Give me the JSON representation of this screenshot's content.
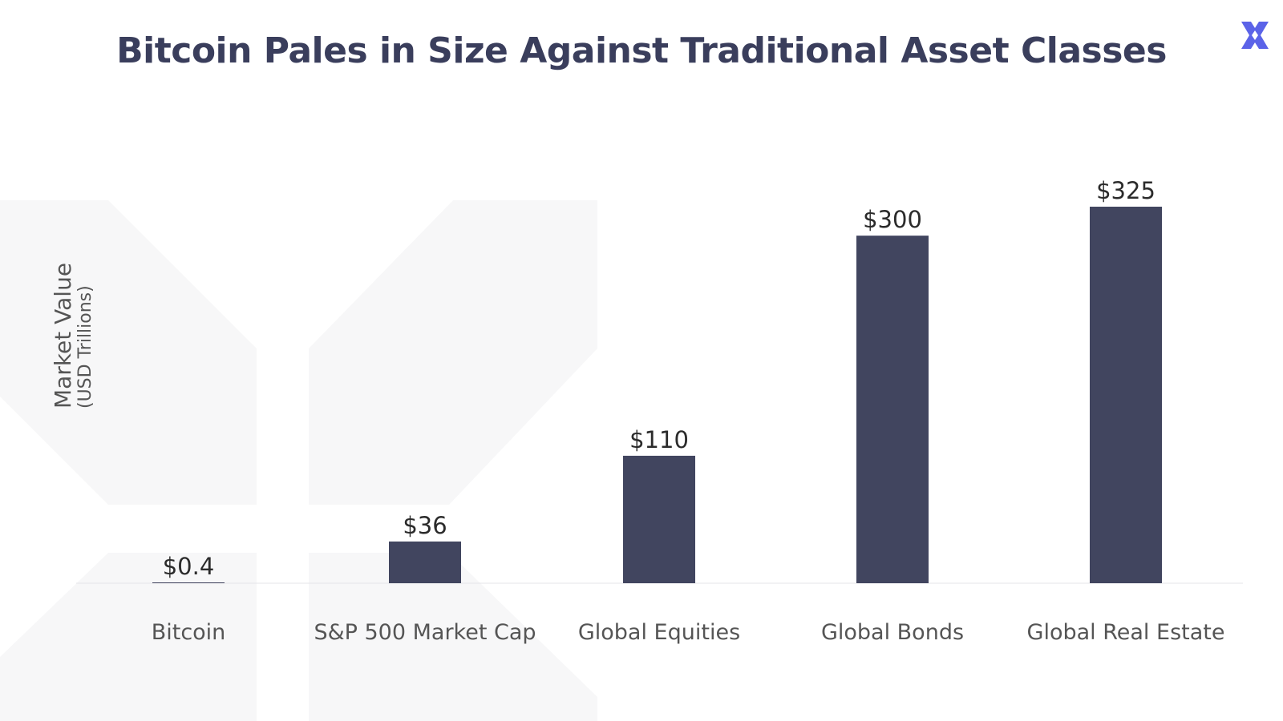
{
  "colors": {
    "bar": "#41455f",
    "title": "#3a3e5c",
    "text": "#2b2b2b",
    "axis_label": "#555555",
    "logo": "#5b63e8",
    "watermark": "#f7f7f8"
  },
  "logo": {
    "icon": "x-logo-icon"
  },
  "chart_data": {
    "type": "bar",
    "title": "Bitcoin Pales in Size Against Traditional Asset Classes",
    "ylabel": "Market Value",
    "ylabel_sub": "(USD Trillions)",
    "xlabel": "",
    "categories": [
      "Bitcoin",
      "S&P 500 Market Cap",
      "Global Equities",
      "Global Bonds",
      "Global Real Estate"
    ],
    "values": [
      0.4,
      36,
      110,
      300,
      325
    ],
    "data_labels": [
      "$0.4",
      "$36",
      "$110",
      "$300",
      "$325"
    ],
    "ylim": [
      0,
      325
    ],
    "grid": false,
    "legend": "none"
  }
}
